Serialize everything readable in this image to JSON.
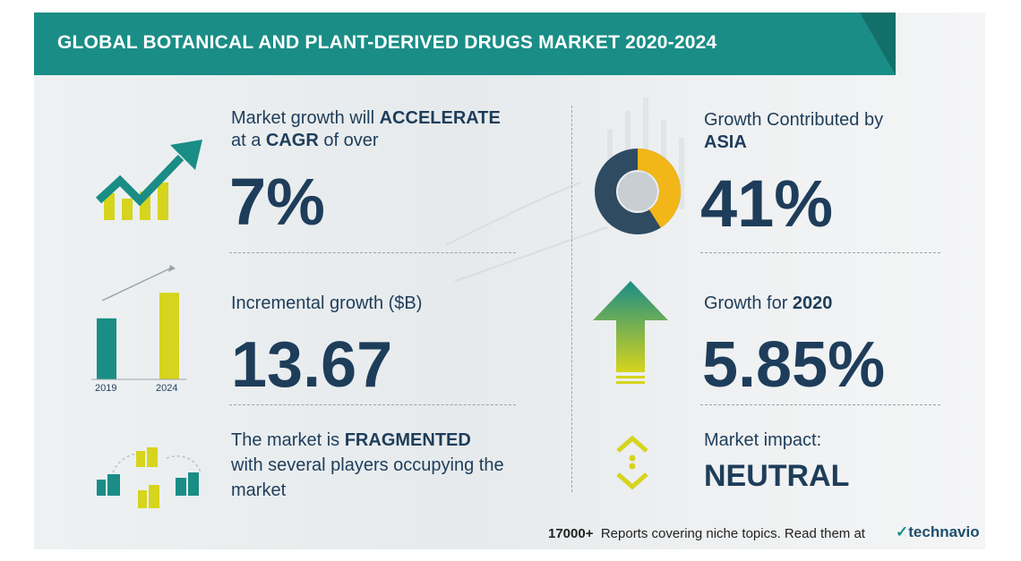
{
  "title": "GLOBAL BOTANICAL AND PLANT-DERIVED DRUGS MARKET 2020-2024",
  "colors": {
    "teal": "#1a8d86",
    "navy": "#1e3d5a",
    "yellow": "#d6d41d",
    "gold": "#f2b619"
  },
  "growth": {
    "line1_prefix": "Market growth will",
    "line1_bold": "ACCELERATE",
    "line2_prefix": "at a",
    "line2_bold": "CAGR",
    "line2_suffix": "of over",
    "value": "7%"
  },
  "incremental": {
    "label": "Incremental growth ($B)",
    "value": "13.67",
    "bars": [
      {
        "year": "2019",
        "level": 0.62
      },
      {
        "year": "2024",
        "level": 0.88
      }
    ]
  },
  "fragmented": {
    "line1_prefix": "The market is",
    "line1_bold": "FRAGMENTED",
    "line2": "with several players occupying the",
    "line3": "market"
  },
  "region": {
    "line1": "Growth Contributed by",
    "line2_bold": "ASIA",
    "value": "41%",
    "share": 41
  },
  "yoy": {
    "label_prefix": "Growth for",
    "label_bold": "2020",
    "value": "5.85%"
  },
  "impact": {
    "label": "Market impact:",
    "value": "NEUTRAL"
  },
  "footer": {
    "count": "17000+",
    "text": "Reports covering niche topics. Read them at",
    "logo": "technavio",
    "icon": "technavio-leaf-icon"
  }
}
